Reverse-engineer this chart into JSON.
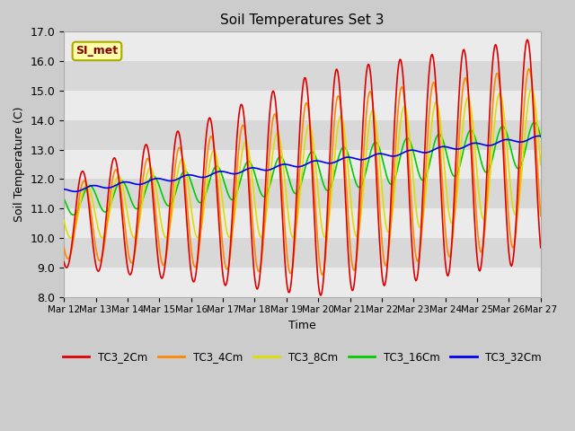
{
  "title": "Soil Temperatures Set 3",
  "xlabel": "Time",
  "ylabel": "Soil Temperature (C)",
  "ylim": [
    8.0,
    17.0
  ],
  "yticks": [
    8.0,
    9.0,
    10.0,
    11.0,
    12.0,
    13.0,
    14.0,
    15.0,
    16.0,
    17.0
  ],
  "xtick_labels": [
    "Mar 12",
    "Mar 13",
    "Mar 14",
    "Mar 15",
    "Mar 16",
    "Mar 17",
    "Mar 18",
    "Mar 19",
    "Mar 20",
    "Mar 21",
    "Mar 22",
    "Mar 23",
    "Mar 24",
    "Mar 25",
    "Mar 26",
    "Mar 27"
  ],
  "colors": {
    "TC3_2Cm": "#dd0000",
    "TC3_4Cm": "#ff8800",
    "TC3_8Cm": "#dddd00",
    "TC3_16Cm": "#00cc00",
    "TC3_32Cm": "#0000ee"
  },
  "annotation_text": "SI_met",
  "band_color_light": "#ebebeb",
  "band_color_dark": "#d8d8d8",
  "fig_bg": "#cccccc"
}
